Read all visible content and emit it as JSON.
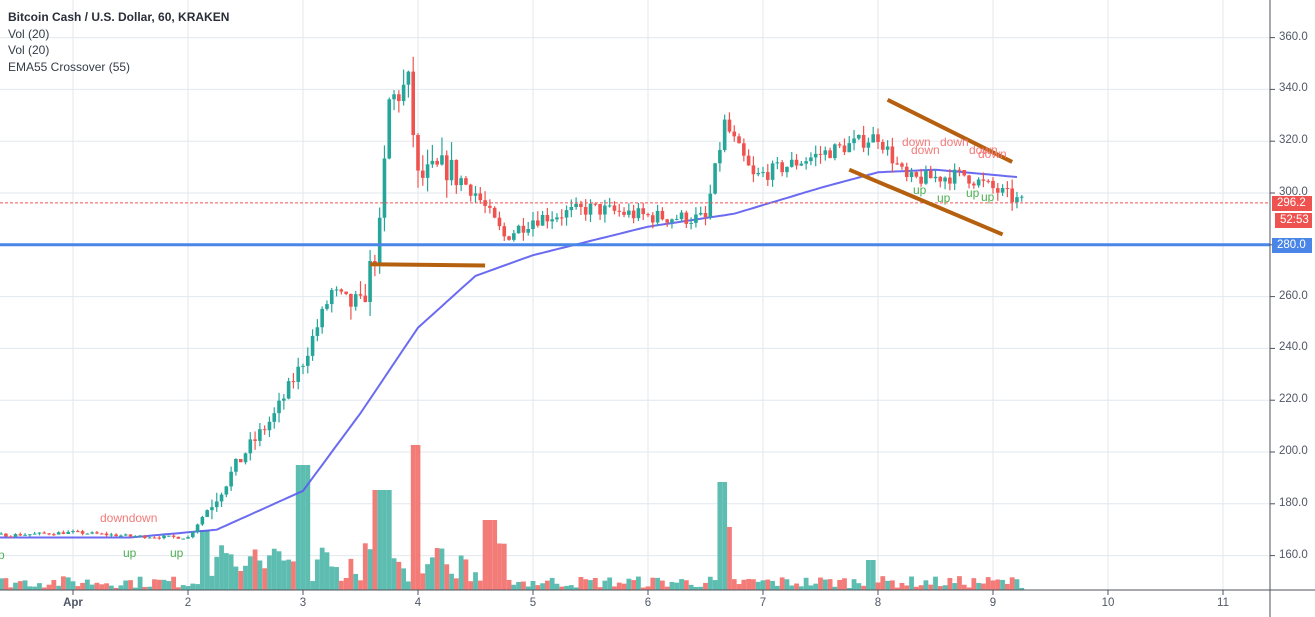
{
  "header": {
    "title": "Bitcoin Cash / U.S. Dollar, 60, KRAKEN",
    "indicators": [
      "Vol (20)",
      "Vol (20)",
      "EMA55 Crossover (55)"
    ]
  },
  "colors": {
    "up": "#26a69a",
    "down": "#ef5350",
    "vol_up": "#5dbdb1",
    "vol_down": "#f37c78",
    "ema": "#5b5bf0",
    "support_line": "#4a86e8",
    "trend_lines": "#b5600f",
    "grid": "#e1e8ef",
    "axis": "#50535e",
    "last_price": "#ef5350",
    "signal_up": "#4caf50",
    "signal_down": "#f47a7a"
  },
  "price_axis": {
    "ticks": [
      "360.0",
      "340.0",
      "320.0",
      "300.0",
      "280.0",
      "260.0",
      "240.0",
      "220.0",
      "200.0",
      "180.0",
      "160.0"
    ],
    "last_price": "296.2",
    "countdown": "52:53",
    "level_label": "280.0"
  },
  "time_axis": {
    "ticks": [
      "Apr",
      "2",
      "3",
      "4",
      "5",
      "6",
      "7",
      "8",
      "9",
      "10",
      "11"
    ]
  },
  "annotations": {
    "down_labels": [
      "downdown",
      "down",
      "down",
      "down",
      "down",
      "down"
    ],
    "up_labels": [
      "p",
      "up",
      "up",
      "up",
      "up",
      "up",
      "up"
    ]
  },
  "chart_data": {
    "type": "candlestick",
    "title": "Bitcoin Cash / U.S. Dollar, 60, KRAKEN",
    "xlabel": "",
    "ylabel": "",
    "ylim": [
      146,
      370
    ],
    "x_ticks": [
      "Apr",
      "2",
      "3",
      "4",
      "5",
      "6",
      "7",
      "8",
      "9",
      "10",
      "11"
    ],
    "y_ticks": [
      160,
      180,
      200,
      220,
      240,
      260,
      280,
      300,
      320,
      340,
      360
    ],
    "interval": "60 minutes",
    "last_price": 296.2,
    "horizontal_level": 280.0,
    "ema_period": 55,
    "series_close_path": [
      [
        "Mar31 12:00",
        168
      ],
      [
        "Apr1 00:00",
        169
      ],
      [
        "Apr1 12:00",
        167.5
      ],
      [
        "Apr2 00:00",
        167
      ],
      [
        "Apr2 06:00",
        183
      ],
      [
        "Apr2 12:00",
        200
      ],
      [
        "Apr2 18:00",
        214
      ],
      [
        "Apr3 00:00",
        235
      ],
      [
        "Apr3 06:00",
        262
      ],
      [
        "Apr3 12:00",
        255
      ],
      [
        "Apr3 16:00",
        285
      ],
      [
        "Apr3 18:00",
        335
      ],
      [
        "Apr3 22:00",
        342
      ],
      [
        "Apr4 00:00",
        305
      ],
      [
        "Apr4 06:00",
        310
      ],
      [
        "Apr4 12:00",
        300
      ],
      [
        "Apr4 18:00",
        283
      ],
      [
        "Apr5 00:00",
        290
      ],
      [
        "Apr5 12:00",
        294
      ],
      [
        "Apr6 00:00",
        291
      ],
      [
        "Apr6 12:00",
        290
      ],
      [
        "Apr6 16:00",
        327
      ],
      [
        "Apr6 22:00",
        306
      ],
      [
        "Apr7 12:00",
        315
      ],
      [
        "Apr8 00:00",
        322
      ],
      [
        "Apr8 06:00",
        305
      ],
      [
        "Apr8 18:00",
        307
      ],
      [
        "Apr9 06:00",
        296.2
      ]
    ],
    "ema_path": [
      [
        "Apr1 12:00",
        167
      ],
      [
        "Apr2 06:00",
        170
      ],
      [
        "Apr3 00:00",
        185
      ],
      [
        "Apr3 12:00",
        215
      ],
      [
        "Apr4 00:00",
        248
      ],
      [
        "Apr4 12:00",
        268
      ],
      [
        "Apr5 00:00",
        276
      ],
      [
        "Apr6 00:00",
        287
      ],
      [
        "Apr6 18:00",
        292
      ],
      [
        "Apr7 12:00",
        302
      ],
      [
        "Apr8 00:00",
        308
      ],
      [
        "Apr8 12:00",
        309
      ],
      [
        "Apr9 06:00",
        306
      ]
    ],
    "volume_peaks": [
      {
        "x": "Apr3 00:00",
        "value": "high",
        "color": "up"
      },
      {
        "x": "Apr4 00:00",
        "value": "highest",
        "color": "up"
      },
      {
        "x": "Apr6 16:00",
        "value": "high",
        "color": "up"
      }
    ],
    "drawings": [
      {
        "type": "horizontal_ray",
        "price": 280.0,
        "color": "#4a86e8"
      },
      {
        "type": "segment",
        "from": [
          "Apr3 14:00",
          272.5
        ],
        "to": [
          "Apr4 14:00",
          272
        ],
        "color": "#b5600f"
      },
      {
        "type": "segment",
        "from": [
          "Apr8 02:00",
          336
        ],
        "to": [
          "Apr9 04:00",
          312
        ],
        "color": "#b5600f"
      },
      {
        "type": "segment",
        "from": [
          "Apr7 18:00",
          309
        ],
        "to": [
          "Apr9 02:00",
          284
        ],
        "color": "#b5600f"
      }
    ]
  }
}
